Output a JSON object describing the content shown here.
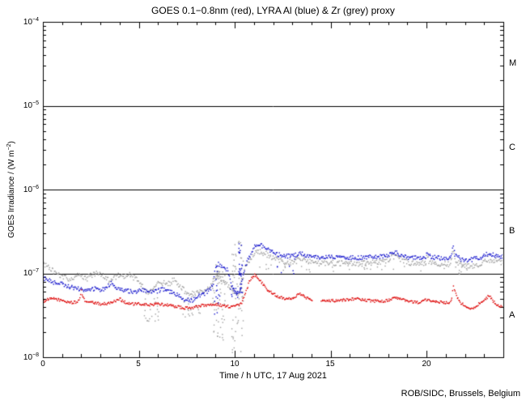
{
  "title": "GOES 0.1−0.8nm (red), LYRA Al (blue) & Zr (grey) proxy",
  "footer": "ROB/SIDC, Brussels, Belgium",
  "axes": {
    "xlabel": "Time / h UTC, 17 Aug 2021",
    "ylabel_prefix": "GOES Irradiance / (W m",
    "ylabel_sup": "−2",
    "ylabel_suffix": ")",
    "xticks": [
      "0",
      "5",
      "10",
      "15",
      "20"
    ],
    "yticks": [
      {
        "base": "10",
        "sup": "−4"
      },
      {
        "base": "10",
        "sup": "−5"
      },
      {
        "base": "10",
        "sup": "−6"
      },
      {
        "base": "10",
        "sup": "−7"
      },
      {
        "base": "10",
        "sup": "−8"
      }
    ],
    "flare_classes": [
      "M",
      "C",
      "B",
      "A"
    ]
  },
  "chart_data": {
    "type": "scatter",
    "title": "GOES 0.1−0.8nm (red), LYRA Al (blue) & Zr (grey) proxy",
    "xlabel": "Time / h UTC, 17 Aug 2021",
    "ylabel": "GOES Irradiance / (W m−2)",
    "x_range_hours": [
      0,
      24
    ],
    "x_major_tick_hours": 5,
    "x_minor_tick_hours": 1,
    "y_range": [
      1e-08,
      0.0001
    ],
    "y_scale": "log",
    "grid": false,
    "background": "#ffffff",
    "hlines": [
      1e-05,
      1e-06,
      1e-07
    ],
    "flare_class_labels": [
      "M",
      "C",
      "B",
      "A"
    ],
    "series": [
      {
        "name": "GOES 0.1-0.8nm",
        "color": "#dd0000",
        "sigma": 0.016,
        "gaps": [
          [
            14.05,
            14.5
          ]
        ],
        "anchors": [
          [
            0,
            4.6e-08
          ],
          [
            0.3,
            4.9e-08
          ],
          [
            0.6,
            5e-08
          ],
          [
            0.9,
            4.8e-08
          ],
          [
            1.2,
            4.6e-08
          ],
          [
            1.5,
            4.5e-08
          ],
          [
            1.8,
            4.5e-08
          ],
          [
            1.93,
            5.2e-08
          ],
          [
            2.0,
            6.3e-08
          ],
          [
            2.08,
            5.2e-08
          ],
          [
            2.2,
            4.7e-08
          ],
          [
            2.5,
            4.5e-08
          ],
          [
            2.8,
            4.4e-08
          ],
          [
            3.1,
            4.3e-08
          ],
          [
            3.4,
            4.4e-08
          ],
          [
            3.7,
            4.6e-08
          ],
          [
            4.0,
            5e-08
          ],
          [
            4.15,
            4.7e-08
          ],
          [
            4.4,
            4.4e-08
          ],
          [
            4.7,
            4.3e-08
          ],
          [
            5.0,
            4.3e-08
          ],
          [
            5.5,
            4.2e-08
          ],
          [
            6.0,
            4.3e-08
          ],
          [
            6.5,
            4.2e-08
          ],
          [
            7.0,
            4e-08
          ],
          [
            7.4,
            3.85e-08
          ],
          [
            7.8,
            3.9e-08
          ],
          [
            8.2,
            4.1e-08
          ],
          [
            8.6,
            4.2e-08
          ],
          [
            9.0,
            4.3e-08
          ],
          [
            9.4,
            4.1e-08
          ],
          [
            9.8,
            4e-08
          ],
          [
            10.1,
            4.1e-08
          ],
          [
            10.35,
            4.4e-08
          ],
          [
            10.55,
            5.6e-08
          ],
          [
            10.75,
            7.8e-08
          ],
          [
            10.9,
            9e-08
          ],
          [
            11.05,
            9.6e-08
          ],
          [
            11.2,
            9e-08
          ],
          [
            11.45,
            7.6e-08
          ],
          [
            11.7,
            6.4e-08
          ],
          [
            12.0,
            5.7e-08
          ],
          [
            12.35,
            5.2e-08
          ],
          [
            12.7,
            5e-08
          ],
          [
            13.05,
            5.1e-08
          ],
          [
            13.4,
            5.7e-08
          ],
          [
            13.75,
            5.1e-08
          ],
          [
            14.0,
            4.9e-08
          ],
          [
            14.55,
            4.8e-08
          ],
          [
            15.0,
            4.7e-08
          ],
          [
            15.5,
            4.8e-08
          ],
          [
            16.0,
            4.9e-08
          ],
          [
            16.4,
            5e-08
          ],
          [
            16.8,
            4.8e-08
          ],
          [
            17.2,
            4.7e-08
          ],
          [
            17.6,
            4.6e-08
          ],
          [
            18.0,
            4.8e-08
          ],
          [
            18.4,
            5.1e-08
          ],
          [
            18.8,
            4.8e-08
          ],
          [
            19.2,
            4.6e-08
          ],
          [
            19.6,
            4.5e-08
          ],
          [
            20.0,
            4.8e-08
          ],
          [
            20.4,
            4.7e-08
          ],
          [
            20.8,
            4.5e-08
          ],
          [
            21.2,
            4.4e-08
          ],
          [
            21.3,
            4.8e-08
          ],
          [
            21.4,
            7e-08
          ],
          [
            21.55,
            5.4e-08
          ],
          [
            21.8,
            4.4e-08
          ],
          [
            22.1,
            4e-08
          ],
          [
            22.35,
            3.8e-08
          ],
          [
            22.7,
            4.3e-08
          ],
          [
            23.0,
            4.7e-08
          ],
          [
            23.25,
            5.4e-08
          ],
          [
            23.5,
            4.6e-08
          ],
          [
            23.75,
            4.1e-08
          ],
          [
            24,
            3.9e-08
          ]
        ],
        "bursts": []
      },
      {
        "name": "LYRA Al proxy",
        "color": "#1111cc",
        "sigma": 0.026,
        "gaps": [],
        "anchors": [
          [
            0,
            8.8e-08
          ],
          [
            0.3,
            8.2e-08
          ],
          [
            0.6,
            7.8e-08
          ],
          [
            0.9,
            7.6e-08
          ],
          [
            1.2,
            7.2e-08
          ],
          [
            1.5,
            6.8e-08
          ],
          [
            1.8,
            6.6e-08
          ],
          [
            2.1,
            6.3e-08
          ],
          [
            2.4,
            6.2e-08
          ],
          [
            2.7,
            6.6e-08
          ],
          [
            3.0,
            6.3e-08
          ],
          [
            3.3,
            6.8e-08
          ],
          [
            3.55,
            7.6e-08
          ],
          [
            3.75,
            7e-08
          ],
          [
            4.0,
            6.6e-08
          ],
          [
            4.3,
            6.3e-08
          ],
          [
            4.6,
            6.1e-08
          ],
          [
            4.9,
            6e-08
          ],
          [
            5.2,
            6.3e-08
          ],
          [
            5.5,
            5.9e-08
          ],
          [
            5.8,
            6e-08
          ],
          [
            6.1,
            6.3e-08
          ],
          [
            6.35,
            6.6e-08
          ],
          [
            6.6,
            6.1e-08
          ],
          [
            6.9,
            5.7e-08
          ],
          [
            7.2,
            5.2e-08
          ],
          [
            7.5,
            4.8e-08
          ],
          [
            7.8,
            4.8e-08
          ],
          [
            8.1,
            5.3e-08
          ],
          [
            8.45,
            5.8e-08
          ],
          [
            8.7,
            6.4e-08
          ],
          [
            8.88,
            7.2e-08
          ],
          [
            8.98,
            1.18e-07
          ],
          [
            9.15,
            1.3e-07
          ],
          [
            9.35,
            1.2e-07
          ],
          [
            9.55,
            1.12e-07
          ],
          [
            9.65,
            1.08e-07
          ],
          [
            9.78,
            7.8e-08
          ],
          [
            9.95,
            6.4e-08
          ],
          [
            10.15,
            5.9e-08
          ],
          [
            10.3,
            6.6e-08
          ],
          [
            10.45,
            9.5e-08
          ],
          [
            10.6,
            1.3e-07
          ],
          [
            10.8,
            1.65e-07
          ],
          [
            11.0,
            2.05e-07
          ],
          [
            11.2,
            2.2e-07
          ],
          [
            11.45,
            2.12e-07
          ],
          [
            11.7,
            1.95e-07
          ],
          [
            12.0,
            1.78e-07
          ],
          [
            12.3,
            1.67e-07
          ],
          [
            12.7,
            1.6e-07
          ],
          [
            13.1,
            1.62e-07
          ],
          [
            13.45,
            1.76e-07
          ],
          [
            13.8,
            1.62e-07
          ],
          [
            14.2,
            1.56e-07
          ],
          [
            14.6,
            1.52e-07
          ],
          [
            14.95,
            1.58e-07
          ],
          [
            15.4,
            1.52e-07
          ],
          [
            15.9,
            1.55e-07
          ],
          [
            16.4,
            1.53e-07
          ],
          [
            16.9,
            1.55e-07
          ],
          [
            17.4,
            1.58e-07
          ],
          [
            17.9,
            1.62e-07
          ],
          [
            18.2,
            1.72e-07
          ],
          [
            18.4,
            1.76e-07
          ],
          [
            18.7,
            1.62e-07
          ],
          [
            19.1,
            1.55e-07
          ],
          [
            19.6,
            1.52e-07
          ],
          [
            19.95,
            1.55e-07
          ],
          [
            20.02,
            1.9e-07
          ],
          [
            20.12,
            1.6e-07
          ],
          [
            20.4,
            1.55e-07
          ],
          [
            20.8,
            1.52e-07
          ],
          [
            21.2,
            1.54e-07
          ],
          [
            21.3,
            1.6e-07
          ],
          [
            21.38,
            2.12e-07
          ],
          [
            21.5,
            1.62e-07
          ],
          [
            21.8,
            1.48e-07
          ],
          [
            22.1,
            1.44e-07
          ],
          [
            22.5,
            1.48e-07
          ],
          [
            22.9,
            1.58e-07
          ],
          [
            23.2,
            1.72e-07
          ],
          [
            23.5,
            1.65e-07
          ],
          [
            23.8,
            1.6e-07
          ],
          [
            24,
            1.58e-07
          ]
        ],
        "bursts": [
          {
            "t": [
              8.95,
              9.25
            ],
            "v": [
              3e-08,
              1.1e-07
            ],
            "n": 14
          },
          {
            "t": [
              9.7,
              10.2
            ],
            "v": [
              4.5e-08,
              7e-08
            ],
            "n": 10
          },
          {
            "t": [
              10.2,
              10.4
            ],
            "v": [
              5e-08,
              2.4e-07
            ],
            "n": 30
          },
          {
            "t": [
              12.2,
              13.2
            ],
            "v": [
              9e-08,
              1.5e-07
            ],
            "n": 7
          }
        ]
      },
      {
        "name": "LYRA Zr proxy",
        "color": "#a0a0a0",
        "sigma": 0.034,
        "gaps": [],
        "anchors": [
          [
            0,
            1.28e-07
          ],
          [
            0.25,
            1.18e-07
          ],
          [
            0.5,
            1.08e-07
          ],
          [
            0.8,
            9.8e-08
          ],
          [
            1.1,
            9e-08
          ],
          [
            1.4,
            8.6e-08
          ],
          [
            1.7,
            9.2e-08
          ],
          [
            2.0,
            9.6e-08
          ],
          [
            2.3,
            8.6e-08
          ],
          [
            2.6,
            9.8e-08
          ],
          [
            2.9,
            1e-07
          ],
          [
            3.2,
            9e-08
          ],
          [
            3.45,
            8.2e-08
          ],
          [
            3.7,
            8.8e-08
          ],
          [
            3.95,
            9.4e-08
          ],
          [
            4.2,
            9e-08
          ],
          [
            4.5,
            9.6e-08
          ],
          [
            4.8,
            8.8e-08
          ],
          [
            5.1,
            7.6e-08
          ],
          [
            5.4,
            5.8e-08
          ],
          [
            5.7,
            6.4e-08
          ],
          [
            6.0,
            7.4e-08
          ],
          [
            6.3,
            7.8e-08
          ],
          [
            6.6,
            7.4e-08
          ],
          [
            6.85,
            8.6e-08
          ],
          [
            7.05,
            7.4e-08
          ],
          [
            7.3,
            6.4e-08
          ],
          [
            7.6,
            5.8e-08
          ],
          [
            7.9,
            5.6e-08
          ],
          [
            8.2,
            6e-08
          ],
          [
            8.5,
            6.4e-08
          ],
          [
            8.8,
            7.4e-08
          ],
          [
            9.0,
            8.6e-08
          ],
          [
            9.2,
            9e-08
          ],
          [
            9.4,
            8.4e-08
          ],
          [
            9.6,
            7.6e-08
          ],
          [
            9.8,
            6.6e-08
          ],
          [
            10.0,
            6e-08
          ],
          [
            10.2,
            5.6e-08
          ],
          [
            10.35,
            7e-08
          ],
          [
            10.5,
            1.05e-07
          ],
          [
            10.7,
            1.35e-07
          ],
          [
            10.9,
            1.6e-07
          ],
          [
            11.1,
            1.75e-07
          ],
          [
            11.35,
            1.82e-07
          ],
          [
            11.6,
            1.72e-07
          ],
          [
            11.9,
            1.58e-07
          ],
          [
            12.2,
            1.46e-07
          ],
          [
            12.6,
            1.38e-07
          ],
          [
            13.0,
            1.36e-07
          ],
          [
            13.45,
            1.52e-07
          ],
          [
            13.8,
            1.4e-07
          ],
          [
            14.2,
            1.34e-07
          ],
          [
            14.6,
            1.31e-07
          ],
          [
            14.95,
            1.36e-07
          ],
          [
            15.4,
            1.3e-07
          ],
          [
            15.9,
            1.33e-07
          ],
          [
            16.4,
            1.3e-07
          ],
          [
            16.9,
            1.31e-07
          ],
          [
            17.4,
            1.34e-07
          ],
          [
            17.9,
            1.42e-07
          ],
          [
            18.2,
            1.58e-07
          ],
          [
            18.4,
            1.64e-07
          ],
          [
            18.7,
            1.45e-07
          ],
          [
            19.1,
            1.34e-07
          ],
          [
            19.6,
            1.3e-07
          ],
          [
            19.95,
            1.32e-07
          ],
          [
            20.02,
            1.75e-07
          ],
          [
            20.12,
            1.4e-07
          ],
          [
            20.4,
            1.32e-07
          ],
          [
            20.8,
            1.3e-07
          ],
          [
            21.2,
            1.3e-07
          ],
          [
            21.3,
            1.4e-07
          ],
          [
            21.38,
            2e-07
          ],
          [
            21.5,
            1.42e-07
          ],
          [
            21.8,
            1.28e-07
          ],
          [
            22.1,
            1.2e-07
          ],
          [
            22.5,
            1.22e-07
          ],
          [
            22.9,
            1.32e-07
          ],
          [
            23.2,
            1.48e-07
          ],
          [
            23.5,
            1.42e-07
          ],
          [
            23.8,
            1.36e-07
          ],
          [
            24,
            1.34e-07
          ]
        ],
        "bursts": [
          {
            "t": [
              5.25,
              6.05
            ],
            "v": [
              2.5e-08,
              6.5e-08
            ],
            "n": 22
          },
          {
            "t": [
              7.3,
              8.3
            ],
            "v": [
              2.8e-08,
              5.6e-08
            ],
            "n": 18
          },
          {
            "t": [
              8.85,
              9.5
            ],
            "v": [
              1.6e-08,
              1.3e-07
            ],
            "n": 55
          },
          {
            "t": [
              9.85,
              10.45
            ],
            "v": [
              1.1e-08,
              2.5e-07
            ],
            "n": 65
          },
          {
            "t": [
              11.3,
              14.0
            ],
            "v": [
              1e-07,
              1.35e-07
            ],
            "n": 14
          },
          {
            "t": [
              14.5,
              21.2
            ],
            "v": [
              1.05e-07,
              1.3e-07
            ],
            "n": 18
          },
          {
            "t": [
              21.45,
              22.3
            ],
            "v": [
              9e-08,
              1.25e-07
            ],
            "n": 10
          }
        ]
      }
    ]
  }
}
